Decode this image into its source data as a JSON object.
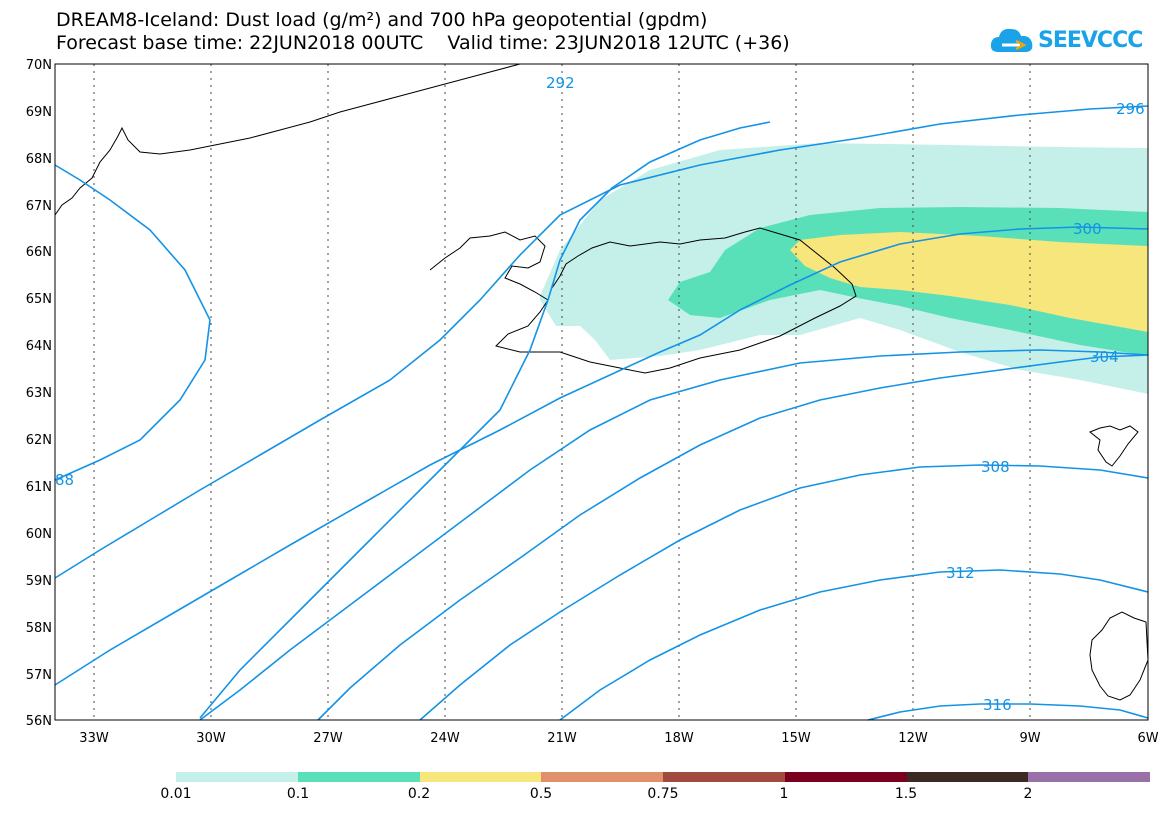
{
  "title_line1": "DREAM8-Iceland: Dust load (g/m²) and 700 hPa geopotential (gpdm)",
  "title_line2": "Forecast base time: 22JUN2018 00UTC    Valid time: 23JUN2018 12UTC (+36)",
  "logo_text": "SEEVCCC",
  "lat_labels": [
    "70N",
    "69N",
    "68N",
    "67N",
    "66N",
    "65N",
    "64N",
    "63N",
    "62N",
    "61N",
    "60N",
    "59N",
    "58N",
    "57N",
    "56N"
  ],
  "lon_labels": [
    "33W",
    "30W",
    "27W",
    "24W",
    "21W",
    "18W",
    "15W",
    "12W",
    "9W",
    "6W"
  ],
  "contour_labels": [
    "292",
    "296",
    "300",
    "304",
    "308",
    "312",
    "316",
    "88"
  ],
  "legend": {
    "colors": [
      "#c5f0ea",
      "#5ae0b8",
      "#f6e67c",
      "#e0906a",
      "#a04a40",
      "#7a0020",
      "#3a2a22",
      "#9a70a8"
    ],
    "labels": [
      "0.01",
      "0.1",
      "0.2",
      "0.5",
      "0.75",
      "1",
      "1.5",
      "2"
    ]
  },
  "colors": {
    "contour": "#1493e6",
    "logo": "#1aa3e8"
  }
}
